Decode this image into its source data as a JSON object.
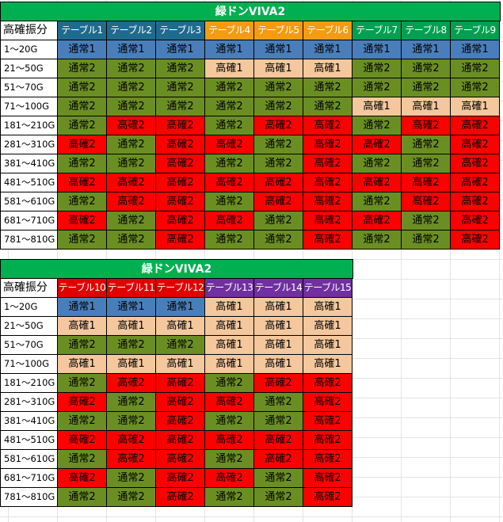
{
  "colors": {
    "title_bg": "#00b050",
    "通常1": "#4a7ebb",
    "通常2": "#6b8e23",
    "高確1": "#f4c79d",
    "高確2": "#ff0000",
    "header_teal": "#1f6b8e",
    "header_orange": "#f59b12",
    "header_green": "#00a050",
    "header_red": "#e00000",
    "header_purple": "#7030a0"
  },
  "tables": [
    {
      "title": "緑ドンVIVA2",
      "corner": "高確振分",
      "headers": [
        {
          "label": "テーブル1",
          "color": "teal"
        },
        {
          "label": "テーブル2",
          "color": "teal"
        },
        {
          "label": "テーブル3",
          "color": "teal"
        },
        {
          "label": "テーブル4",
          "color": "orange"
        },
        {
          "label": "テーブル5",
          "color": "orange"
        },
        {
          "label": "テーブル6",
          "color": "orange"
        },
        {
          "label": "テーブル7",
          "color": "green"
        },
        {
          "label": "テーブル8",
          "color": "green"
        },
        {
          "label": "テーブル9",
          "color": "green"
        }
      ],
      "rows": [
        {
          "range": "1～20G",
          "values": [
            "通常1",
            "通常1",
            "通常1",
            "通常1",
            "通常1",
            "通常1",
            "通常1",
            "通常1",
            "通常1"
          ]
        },
        {
          "range": "21～50G",
          "values": [
            "通常2",
            "通常2",
            "通常2",
            "高確1",
            "高確1",
            "高確1",
            "通常2",
            "通常2",
            "通常2"
          ]
        },
        {
          "range": "51～70G",
          "values": [
            "通常2",
            "通常2",
            "通常2",
            "通常2",
            "通常2",
            "通常2",
            "通常2",
            "通常2",
            "通常2"
          ]
        },
        {
          "range": "71～100G",
          "values": [
            "通常2",
            "通常2",
            "通常2",
            "通常2",
            "通常2",
            "通常2",
            "高確1",
            "高確1",
            "高確1"
          ]
        },
        {
          "range": "181～210G",
          "values": [
            "通常2",
            "高確2",
            "高確2",
            "通常2",
            "高確2",
            "高確2",
            "通常2",
            "高確2",
            "高確2"
          ]
        },
        {
          "range": "281～310G",
          "values": [
            "高確2",
            "通常2",
            "高確2",
            "高確2",
            "通常2",
            "高確2",
            "高確2",
            "通常2",
            "高確2"
          ]
        },
        {
          "range": "381～410G",
          "values": [
            "通常2",
            "通常2",
            "高確2",
            "通常2",
            "通常2",
            "高確2",
            "通常2",
            "通常2",
            "高確2"
          ]
        },
        {
          "range": "481～510G",
          "values": [
            "高確2",
            "高確2",
            "高確2",
            "高確2",
            "高確2",
            "高確2",
            "高確2",
            "高確2",
            "高確2"
          ]
        },
        {
          "range": "581～610G",
          "values": [
            "通常2",
            "高確2",
            "高確2",
            "通常2",
            "高確2",
            "高確2",
            "通常2",
            "高確2",
            "高確2"
          ]
        },
        {
          "range": "681～710G",
          "values": [
            "高確2",
            "通常2",
            "高確2",
            "高確2",
            "通常2",
            "高確2",
            "高確2",
            "通常2",
            "高確2"
          ]
        },
        {
          "range": "781～810G",
          "values": [
            "通常2",
            "通常2",
            "高確2",
            "通常2",
            "通常2",
            "高確2",
            "通常2",
            "通常2",
            "高確2"
          ]
        }
      ]
    },
    {
      "title": "緑ドンVIVA2",
      "corner": "高確振分",
      "headers": [
        {
          "label": "テーブル10",
          "color": "red"
        },
        {
          "label": "テーブル11",
          "color": "red"
        },
        {
          "label": "テーブル12",
          "color": "red"
        },
        {
          "label": "テーブル13",
          "color": "purple"
        },
        {
          "label": "テーブル14",
          "color": "purple"
        },
        {
          "label": "テーブル15",
          "color": "purple"
        }
      ],
      "rows": [
        {
          "range": "1～20G",
          "values": [
            "通常1",
            "通常1",
            "通常1",
            "高確1",
            "高確1",
            "高確1"
          ]
        },
        {
          "range": "21～50G",
          "values": [
            "高確1",
            "高確1",
            "高確1",
            "高確1",
            "高確1",
            "高確1"
          ]
        },
        {
          "range": "51～70G",
          "values": [
            "通常2",
            "通常2",
            "通常2",
            "高確1",
            "高確1",
            "高確1"
          ]
        },
        {
          "range": "71～100G",
          "values": [
            "高確1",
            "高確1",
            "高確1",
            "高確1",
            "高確1",
            "高確1"
          ]
        },
        {
          "range": "181～210G",
          "values": [
            "通常2",
            "高確2",
            "高確2",
            "通常2",
            "高確2",
            "高確2"
          ]
        },
        {
          "range": "281～310G",
          "values": [
            "高確2",
            "通常2",
            "高確2",
            "高確2",
            "通常2",
            "高確2"
          ]
        },
        {
          "range": "381～410G",
          "values": [
            "通常2",
            "通常2",
            "高確2",
            "通常2",
            "通常2",
            "高確2"
          ]
        },
        {
          "range": "481～510G",
          "values": [
            "高確2",
            "高確2",
            "高確2",
            "高確2",
            "高確2",
            "高確2"
          ]
        },
        {
          "range": "581～610G",
          "values": [
            "通常2",
            "高確2",
            "高確2",
            "通常2",
            "高確2",
            "高確2"
          ]
        },
        {
          "range": "681～710G",
          "values": [
            "高確2",
            "通常2",
            "高確2",
            "高確2",
            "通常2",
            "高確2"
          ]
        },
        {
          "range": "781～810G",
          "values": [
            "通常2",
            "通常2",
            "高確2",
            "通常2",
            "通常2",
            "高確2"
          ]
        }
      ]
    }
  ]
}
